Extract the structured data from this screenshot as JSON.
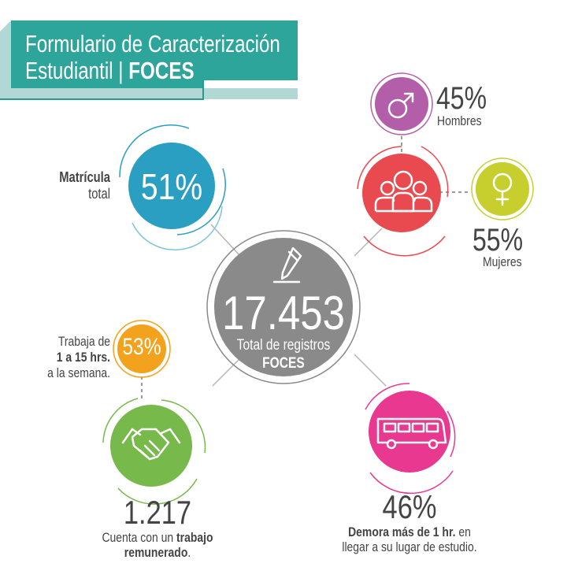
{
  "header": {
    "title_line1": "Formulario de Caracterización",
    "title_line2_regular": "Estudiantil | ",
    "title_line2_bold": "FOCES",
    "colors": {
      "accent": "#2ea59b",
      "border": "#1f8f86"
    }
  },
  "center": {
    "value": "17.453",
    "label": "Total de registros",
    "label_bold": "FOCES",
    "icon": "pencil-icon",
    "color": "#8a8a8a"
  },
  "enrollment": {
    "value": "51%",
    "label_bold": "Matrícula",
    "label": "total",
    "color": "#2a9fc1"
  },
  "gender": {
    "icon": "people-group-icon",
    "color": "#e84a4f",
    "male": {
      "value": "45%",
      "label": "Hombres",
      "icon": "male-symbol-icon",
      "color": "#b25ea8"
    },
    "female": {
      "value": "55%",
      "label": "Mujeres",
      "icon": "female-symbol-icon",
      "color": "#c6cf2e"
    }
  },
  "work": {
    "value": "1.217",
    "label_pre": "Cuenta con un ",
    "label_bold1": "trabajo",
    "label_bold2": "remunerado",
    "label_post": ".",
    "icon": "handshake-icon",
    "color": "#77b94a",
    "hours": {
      "value": "53%",
      "line1": "Trabaja de",
      "line2_bold": "1 a 15 hrs.",
      "line3": "a la semana.",
      "color": "#f2a21c"
    }
  },
  "commute": {
    "value": "46%",
    "label_bold": "Demora más de 1 hr.",
    "label_mid": " en",
    "label_line2": "llegar a su lugar de estudio.",
    "icon": "bus-icon",
    "color": "#e8388f"
  }
}
